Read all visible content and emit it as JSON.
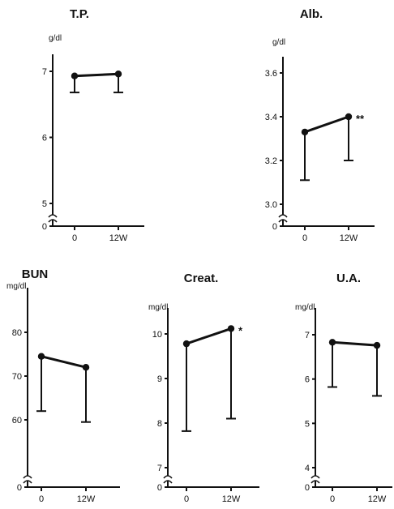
{
  "chart_data": [
    {
      "type": "line",
      "title": "T.P.",
      "unit": "g/dl",
      "categories": [
        "0",
        "12W"
      ],
      "values": [
        6.93,
        6.96
      ],
      "error_lower": [
        6.68,
        6.68
      ],
      "yticks": [
        "5",
        "6",
        "7"
      ],
      "zero_label": "0",
      "ylim": [
        4.85,
        7.3
      ],
      "significance": ""
    },
    {
      "type": "line",
      "title": "Alb.",
      "unit": "g/dl",
      "categories": [
        "0",
        "12W"
      ],
      "values": [
        3.33,
        3.4
      ],
      "error_lower": [
        3.11,
        3.2
      ],
      "yticks": [
        "3.0",
        "3.2",
        "3.4",
        "3.6"
      ],
      "zero_label": "0",
      "ylim": [
        2.96,
        3.7
      ],
      "significance": "**"
    },
    {
      "type": "line",
      "title": "BUN",
      "unit": "mg/dl",
      "categories": [
        "0",
        "12W"
      ],
      "values": [
        74.5,
        72.0
      ],
      "error_lower": [
        62.0,
        59.5
      ],
      "yticks": [
        "60",
        "70",
        "80"
      ],
      "zero_label": "0",
      "ylim": [
        56,
        90
      ],
      "significance": ""
    },
    {
      "type": "line",
      "title": "Creat.",
      "unit": "mg/dl",
      "categories": [
        "0",
        "12W"
      ],
      "values": [
        9.78,
        10.12
      ],
      "error_lower": [
        7.82,
        8.1
      ],
      "yticks": [
        "7",
        "8",
        "9",
        "10"
      ],
      "zero_label": "0",
      "ylim": [
        6.7,
        10.5
      ],
      "significance": "*"
    },
    {
      "type": "line",
      "title": "U.A.",
      "unit": "mg/dl",
      "categories": [
        "0",
        "12W"
      ],
      "values": [
        6.83,
        6.76
      ],
      "error_lower": [
        5.82,
        5.62
      ],
      "yticks": [
        "4",
        "5",
        "6",
        "7"
      ],
      "zero_label": "0",
      "ylim": [
        3.7,
        7.5
      ],
      "significance": ""
    }
  ]
}
